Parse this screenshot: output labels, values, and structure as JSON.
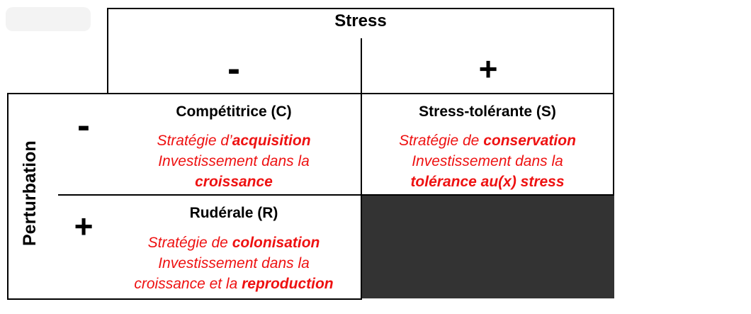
{
  "stress_label": "Stress",
  "perturbation_label": "Perturbation",
  "stress_signs": {
    "minus": "-",
    "plus": "+"
  },
  "perturbation_signs": {
    "minus": "-",
    "plus": "+"
  },
  "cells": {
    "competitrice": {
      "title": "Compétitrice (C)",
      "line1_pre": "Stratégie d’",
      "line1_bold": "acquisition",
      "line2": "Investissement dans la",
      "line3_bold": "croissance"
    },
    "stress_tolerante": {
      "title": "Stress-tolérante (S)",
      "line1_pre": "Stratégie de ",
      "line1_bold": "conservation",
      "line2": "Investissement dans la",
      "line3_bold": "tolérance au(x) stress"
    },
    "ruderale": {
      "title": "Rudérale (R)",
      "line1_pre": "Stratégie de ",
      "line1_bold": "colonisation",
      "line2": "Investissement dans la",
      "line3_pre": "croissance et la ",
      "line3_bold": "reproduction"
    }
  },
  "colors": {
    "text_red": "#ee1111",
    "empty_cell": "#333333",
    "border": "#000000"
  }
}
